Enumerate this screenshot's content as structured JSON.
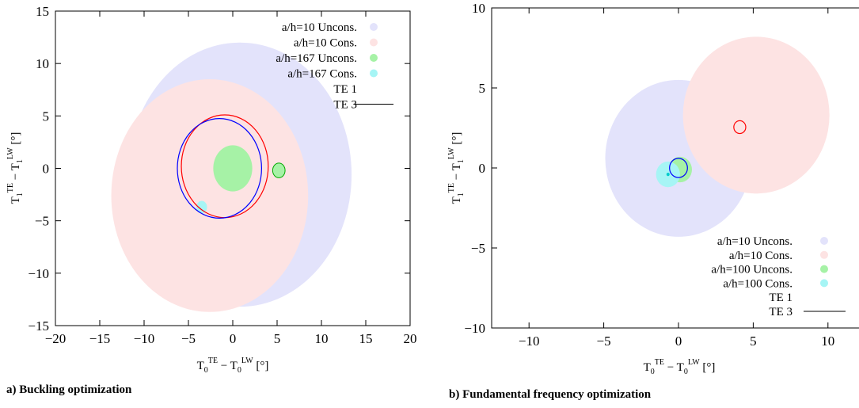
{
  "chart_data": [
    {
      "type": "scatter",
      "caption": "a) Buckling optimization",
      "xlabel": "T0TE − T0LW [°]",
      "ylabel": "T1TE − T1LW [°]",
      "xlabel_parts": [
        "T",
        "0",
        "TE",
        " − T",
        "0",
        "LW",
        " [°]"
      ],
      "ylabel_parts": [
        "T",
        "1",
        "TE",
        " − T",
        "1",
        "LW",
        " [°]"
      ],
      "xlim": [
        -20,
        20
      ],
      "ylim": [
        -15,
        15
      ],
      "xticks": [
        -20,
        -15,
        -10,
        -5,
        0,
        5,
        10,
        15,
        20
      ],
      "yticks": [
        -15,
        -10,
        -5,
        0,
        5,
        10,
        15
      ],
      "grid": false,
      "legend_position": "top-right",
      "series": [
        {
          "name": "a/h=10 Uncons.",
          "color": "#e3e3fb",
          "kind": "disc",
          "x": 0.8,
          "y": -0.6,
          "r": 12.6
        },
        {
          "name": "a/h=10 Cons.",
          "color": "#fde3e3",
          "kind": "disc",
          "x": -2.6,
          "y": -2.6,
          "r": 11.1
        },
        {
          "name": "a/h=167 Uncons.",
          "color": "#a6f2a6",
          "kind": "disc",
          "x": 0.0,
          "y": 0.0,
          "r": 2.2
        },
        {
          "name": "a/h=167 Cons.",
          "color": "#a6f5f5",
          "kind": "disc",
          "x": -3.5,
          "y": -3.7,
          "r": 0.6
        },
        {
          "name": "TE 1",
          "color": "#ff0000",
          "kind": "ring",
          "x": -0.9,
          "y": 0.2,
          "r": 4.9
        },
        {
          "name": "TE 3",
          "color": "#0000ff",
          "kind": "ring",
          "x": -1.5,
          "y": 0.0,
          "r": 4.75
        }
      ],
      "extra_marks": [
        {
          "color": "#a6f2a6",
          "stroke": "#00aa00",
          "x": 5.2,
          "y": -0.2,
          "r": 0.7
        }
      ],
      "legend_line_entry": "TE 3"
    },
    {
      "type": "scatter",
      "caption": "b) Fundamental frequency optimization",
      "xlabel": "T0TE − T0LW [°]",
      "ylabel": "T1TE − T1LW [°]",
      "xlabel_parts": [
        "T",
        "0",
        "TE",
        " − T",
        "0",
        "LW",
        " [°]"
      ],
      "ylabel_parts": [
        "T",
        "1",
        "TE",
        " − T",
        "1",
        "LW",
        " [°]"
      ],
      "xlim": [
        -12.5,
        12.5
      ],
      "ylim": [
        -10,
        10
      ],
      "xticks": [
        -10,
        -5,
        0,
        5,
        10
      ],
      "yticks": [
        -10,
        -5,
        0,
        5,
        10
      ],
      "grid": false,
      "legend_position": "bottom-right",
      "series": [
        {
          "name": "a/h=10 Uncons.",
          "color": "#e3e3fb",
          "kind": "disc",
          "x": 0.0,
          "y": 0.6,
          "r": 4.9
        },
        {
          "name": "a/h=10 Cons.",
          "color": "#fde3e3",
          "kind": "disc",
          "x": 5.2,
          "y": 3.3,
          "r": 4.9
        },
        {
          "name": "a/h=100 Uncons.",
          "color": "#a6f2a6",
          "kind": "disc",
          "x": 0.1,
          "y": -0.1,
          "r": 0.8
        },
        {
          "name": "a/h=100 Cons.",
          "color": "#a6f5f5",
          "kind": "disc",
          "x": -0.7,
          "y": -0.4,
          "r": 0.8
        },
        {
          "name": "TE 1",
          "color": "#ff0000",
          "kind": "ring",
          "x": 4.1,
          "y": 2.55,
          "r": 0.4
        },
        {
          "name": "TE 3",
          "color": "#0000ff",
          "kind": "ring",
          "x": 0.0,
          "y": 0.0,
          "r": 0.6
        }
      ],
      "extra_marks": [
        {
          "color": "#00cccc",
          "stroke": "#00cccc",
          "x": -0.7,
          "y": -0.4,
          "r": 0.08
        }
      ],
      "legend_line_entry": "TE 3"
    }
  ]
}
